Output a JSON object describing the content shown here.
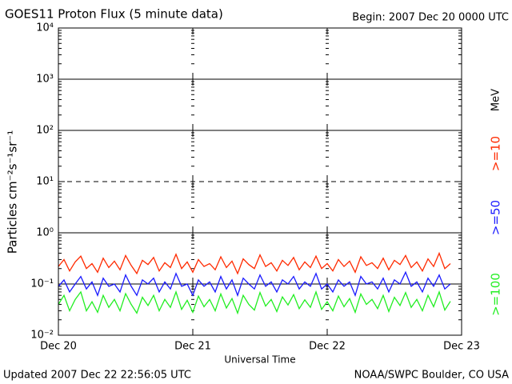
{
  "chart_data": {
    "type": "line",
    "title": "GOES11 Proton Flux (5 minute data)",
    "subtitle": "Begin: 2007 Dec 20 0000 UTC",
    "x_label": "Universal Time",
    "y_label": "Particles cm⁻²s⁻¹sr⁻¹",
    "legend_unit": "MeV",
    "footer_left": "Updated 2007 Dec 22 22:56:05 UTC",
    "footer_right": "NOAA/SWPC Boulder, CO USA",
    "log_y": true,
    "grid": true,
    "dashed_grid": [
      10
    ],
    "xlim": [
      0,
      72
    ],
    "xticks": [
      {
        "value": 0,
        "label": "Dec 20"
      },
      {
        "value": 24,
        "label": "Dec 21"
      },
      {
        "value": 48,
        "label": "Dec 22"
      },
      {
        "value": 72,
        "label": "Dec 23"
      }
    ],
    "ylim": [
      0.01,
      10000
    ],
    "yticks": [
      {
        "value": 0.01,
        "label": "10⁻²"
      },
      {
        "value": 0.1,
        "label": "10⁻¹"
      },
      {
        "value": 1,
        "label": "10⁰"
      },
      {
        "value": 10,
        "label": "10¹"
      },
      {
        "value": 100,
        "label": "10²"
      },
      {
        "value": 1000,
        "label": "10³"
      },
      {
        "value": 10000,
        "label": "10⁴"
      }
    ],
    "x": [
      0,
      1,
      2,
      3,
      4,
      5,
      6,
      7,
      8,
      9,
      10,
      11,
      12,
      13,
      14,
      15,
      16,
      17,
      18,
      19,
      20,
      21,
      22,
      23,
      24,
      25,
      26,
      27,
      28,
      29,
      30,
      31,
      32,
      33,
      34,
      35,
      36,
      37,
      38,
      39,
      40,
      41,
      42,
      43,
      44,
      45,
      46,
      47,
      48,
      49,
      50,
      51,
      52,
      53,
      54,
      55,
      56,
      57,
      58,
      59,
      60,
      61,
      62,
      63,
      64,
      65,
      66,
      67,
      68,
      69,
      70
    ],
    "series": [
      {
        "name": ">=10",
        "color": "#ff2a00",
        "values": [
          0.22,
          0.3,
          0.18,
          0.27,
          0.35,
          0.2,
          0.25,
          0.17,
          0.32,
          0.21,
          0.28,
          0.19,
          0.36,
          0.23,
          0.16,
          0.29,
          0.24,
          0.33,
          0.18,
          0.26,
          0.21,
          0.38,
          0.2,
          0.27,
          0.17,
          0.3,
          0.22,
          0.25,
          0.19,
          0.34,
          0.21,
          0.28,
          0.16,
          0.31,
          0.24,
          0.2,
          0.37,
          0.22,
          0.26,
          0.18,
          0.29,
          0.23,
          0.33,
          0.19,
          0.27,
          0.21,
          0.35,
          0.2,
          0.25,
          0.18,
          0.3,
          0.22,
          0.28,
          0.17,
          0.34,
          0.23,
          0.26,
          0.2,
          0.32,
          0.19,
          0.29,
          0.24,
          0.36,
          0.21,
          0.27,
          0.18,
          0.31,
          0.22,
          0.4,
          0.2,
          0.25
        ]
      },
      {
        "name": ">=50",
        "color": "#1a1aff",
        "values": [
          0.09,
          0.12,
          0.07,
          0.1,
          0.14,
          0.08,
          0.11,
          0.06,
          0.13,
          0.09,
          0.1,
          0.07,
          0.15,
          0.09,
          0.06,
          0.12,
          0.1,
          0.13,
          0.07,
          0.11,
          0.08,
          0.16,
          0.09,
          0.1,
          0.06,
          0.12,
          0.09,
          0.11,
          0.07,
          0.14,
          0.08,
          0.12,
          0.06,
          0.13,
          0.1,
          0.08,
          0.15,
          0.09,
          0.11,
          0.07,
          0.12,
          0.1,
          0.14,
          0.08,
          0.11,
          0.09,
          0.16,
          0.08,
          0.1,
          0.07,
          0.12,
          0.09,
          0.11,
          0.06,
          0.14,
          0.1,
          0.11,
          0.08,
          0.13,
          0.07,
          0.12,
          0.1,
          0.17,
          0.09,
          0.11,
          0.07,
          0.13,
          0.09,
          0.15,
          0.08,
          0.1
        ]
      },
      {
        "name": ">=100",
        "color": "#22ee22",
        "values": [
          0.04,
          0.06,
          0.03,
          0.05,
          0.07,
          0.03,
          0.045,
          0.028,
          0.06,
          0.035,
          0.05,
          0.03,
          0.065,
          0.04,
          0.027,
          0.055,
          0.038,
          0.06,
          0.03,
          0.05,
          0.035,
          0.07,
          0.032,
          0.048,
          0.028,
          0.058,
          0.036,
          0.05,
          0.03,
          0.064,
          0.034,
          0.052,
          0.027,
          0.06,
          0.04,
          0.031,
          0.068,
          0.037,
          0.05,
          0.029,
          0.056,
          0.039,
          0.062,
          0.033,
          0.049,
          0.035,
          0.07,
          0.032,
          0.045,
          0.03,
          0.058,
          0.036,
          0.052,
          0.028,
          0.064,
          0.04,
          0.05,
          0.033,
          0.06,
          0.029,
          0.055,
          0.038,
          0.068,
          0.035,
          0.05,
          0.03,
          0.06,
          0.036,
          0.07,
          0.031,
          0.046
        ]
      }
    ]
  }
}
